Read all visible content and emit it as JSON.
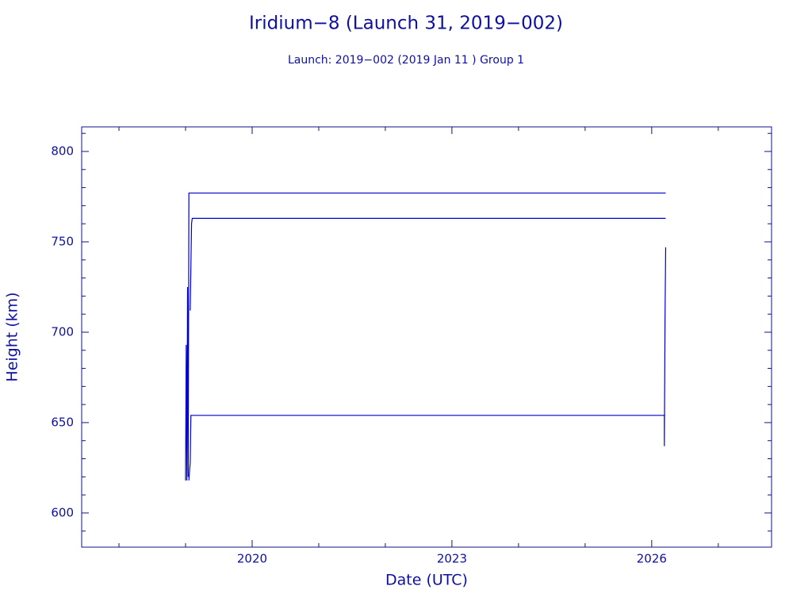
{
  "chart_data": {
    "type": "line",
    "title": "Iridium−8 (Launch 31, 2019−002)",
    "subtitle": "Launch: 2019−002  (2019 Jan 11 )  Group 1",
    "xlabel": "Date (UTC)",
    "ylabel": "Height (km)",
    "xlim": [
      2017.44,
      2027.8
    ],
    "ylim": [
      581.1,
      813.6
    ],
    "xticks": [
      2020,
      2023,
      2026
    ],
    "xminor_ticks": [
      2018,
      2019,
      2021,
      2022,
      2024,
      2025,
      2027
    ],
    "yticks": [
      600,
      650,
      700,
      750,
      800
    ],
    "yminor_ticks": [
      590,
      610,
      620,
      630,
      640,
      660,
      670,
      680,
      690,
      710,
      720,
      730,
      740,
      760,
      770,
      780,
      790,
      810
    ],
    "color": "#0000cc",
    "series": [
      {
        "x": [
          2019.0,
          2019.01,
          2019.02,
          2019.03,
          2019.04,
          2019.05,
          2019.06,
          2026.21
        ],
        "values": [
          618,
          693,
          618,
          725,
          620,
          777,
          777,
          777
        ]
      },
      {
        "x": [
          2019.07,
          2019.09,
          2019.1,
          2026.21
        ],
        "values": [
          712,
          760,
          763,
          763
        ]
      },
      {
        "x": [
          2019.05,
          2019.07,
          2019.08,
          2019.09,
          2026.2
        ],
        "values": [
          618,
          628,
          654,
          654,
          654
        ]
      },
      {
        "x": [
          2026.19,
          2026.19,
          2026.2,
          2026.2,
          2026.21
        ],
        "values": [
          654,
          637,
          707,
          707,
          747
        ]
      }
    ]
  }
}
